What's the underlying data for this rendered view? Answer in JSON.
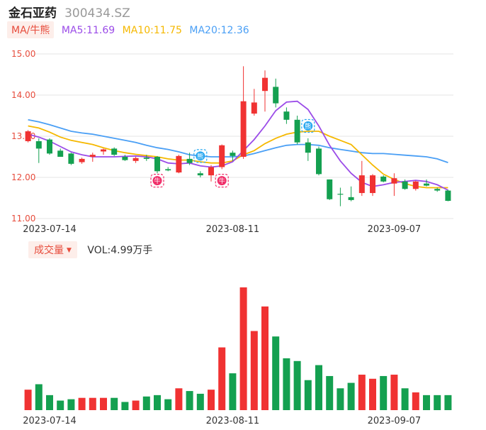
{
  "header": {
    "name": "金石亚药",
    "code": "300434.SZ"
  },
  "ma_legend": {
    "tag": "MA/牛熊",
    "items": [
      {
        "label": "MA5:11.69",
        "color": "#9b4ce8"
      },
      {
        "label": "MA10:11.75",
        "color": "#f5b800"
      },
      {
        "label": "MA20:12.36",
        "color": "#4a9ff5"
      }
    ]
  },
  "volume_legend": {
    "tag": "成交量",
    "value": "VOL:4.99万手"
  },
  "colors": {
    "up": "#f03232",
    "down": "#14a050",
    "marker_buy": "#f0306a",
    "marker_sell": "#2aa8f0"
  },
  "chart_data": [
    {
      "type": "candlestick",
      "y_ticks": [
        "15.00",
        "14.00",
        "13.00",
        "12.00",
        "11.00"
      ],
      "ylim": [
        11.0,
        15.0
      ],
      "x_ticks": [
        {
          "label": "2023-07-14",
          "index": 2
        },
        {
          "label": "2023-08-11",
          "index": 19
        },
        {
          "label": "2023-09-07",
          "index": 34
        }
      ],
      "candles": [
        {
          "o": 12.88,
          "h": 13.15,
          "l": 12.85,
          "c": 13.12
        },
        {
          "o": 12.88,
          "h": 12.95,
          "l": 12.35,
          "c": 12.7
        },
        {
          "o": 12.92,
          "h": 12.95,
          "l": 12.55,
          "c": 12.58
        },
        {
          "o": 12.65,
          "h": 12.7,
          "l": 12.5,
          "c": 12.5
        },
        {
          "o": 12.58,
          "h": 12.6,
          "l": 12.3,
          "c": 12.33
        },
        {
          "o": 12.37,
          "h": 12.48,
          "l": 12.33,
          "c": 12.45
        },
        {
          "o": 12.5,
          "h": 12.6,
          "l": 12.38,
          "c": 12.55
        },
        {
          "o": 12.63,
          "h": 12.7,
          "l": 12.55,
          "c": 12.68
        },
        {
          "o": 12.7,
          "h": 12.73,
          "l": 12.52,
          "c": 12.55
        },
        {
          "o": 12.5,
          "h": 12.55,
          "l": 12.4,
          "c": 12.42
        },
        {
          "o": 12.4,
          "h": 12.5,
          "l": 12.35,
          "c": 12.47
        },
        {
          "o": 12.48,
          "h": 12.55,
          "l": 12.4,
          "c": 12.45
        },
        {
          "o": 12.5,
          "h": 12.52,
          "l": 12.1,
          "c": 12.15
        },
        {
          "o": 12.2,
          "h": 12.25,
          "l": 12.15,
          "c": 12.17
        },
        {
          "o": 12.12,
          "h": 12.55,
          "l": 12.1,
          "c": 12.52
        },
        {
          "o": 12.45,
          "h": 12.6,
          "l": 12.3,
          "c": 12.35
        },
        {
          "o": 12.1,
          "h": 12.15,
          "l": 12.0,
          "c": 12.05
        },
        {
          "o": 12.05,
          "h": 12.3,
          "l": 11.9,
          "c": 12.25
        },
        {
          "o": 12.25,
          "h": 12.8,
          "l": 12.2,
          "c": 12.78
        },
        {
          "o": 12.6,
          "h": 12.65,
          "l": 12.4,
          "c": 12.52
        },
        {
          "o": 12.5,
          "h": 14.7,
          "l": 12.45,
          "c": 13.85
        },
        {
          "o": 13.55,
          "h": 14.15,
          "l": 13.5,
          "c": 13.82
        },
        {
          "o": 14.1,
          "h": 14.6,
          "l": 13.6,
          "c": 14.42
        },
        {
          "o": 14.2,
          "h": 14.4,
          "l": 13.7,
          "c": 13.8
        },
        {
          "o": 13.6,
          "h": 13.7,
          "l": 13.3,
          "c": 13.4
        },
        {
          "o": 13.4,
          "h": 13.5,
          "l": 12.8,
          "c": 12.85
        },
        {
          "o": 12.85,
          "h": 12.95,
          "l": 12.4,
          "c": 12.6
        },
        {
          "o": 12.7,
          "h": 12.75,
          "l": 12.05,
          "c": 12.08
        },
        {
          "o": 11.95,
          "h": 11.95,
          "l": 11.45,
          "c": 11.47
        },
        {
          "o": 11.6,
          "h": 11.75,
          "l": 11.3,
          "c": 11.58
        },
        {
          "o": 11.52,
          "h": 11.78,
          "l": 11.42,
          "c": 11.45
        },
        {
          "o": 11.62,
          "h": 12.4,
          "l": 11.55,
          "c": 12.05
        },
        {
          "o": 11.62,
          "h": 12.08,
          "l": 11.55,
          "c": 12.05
        },
        {
          "o": 12.02,
          "h": 12.05,
          "l": 11.88,
          "c": 11.9
        },
        {
          "o": 11.85,
          "h": 12.1,
          "l": 11.55,
          "c": 11.98
        },
        {
          "o": 11.9,
          "h": 11.95,
          "l": 11.7,
          "c": 11.72
        },
        {
          "o": 11.72,
          "h": 11.92,
          "l": 11.68,
          "c": 11.9
        },
        {
          "o": 11.85,
          "h": 11.95,
          "l": 11.78,
          "c": 11.8
        },
        {
          "o": 11.72,
          "h": 11.75,
          "l": 11.65,
          "c": 11.68
        },
        {
          "o": 11.68,
          "h": 11.7,
          "l": 11.42,
          "c": 11.43
        }
      ],
      "ma5": [
        13.05,
        12.98,
        12.88,
        12.75,
        12.62,
        12.55,
        12.5,
        12.5,
        12.5,
        12.51,
        12.52,
        12.5,
        12.45,
        12.35,
        12.33,
        12.35,
        12.28,
        12.25,
        12.28,
        12.38,
        12.65,
        12.92,
        13.25,
        13.62,
        13.83,
        13.85,
        13.65,
        13.25,
        12.78,
        12.4,
        12.1,
        11.88,
        11.78,
        11.82,
        11.88,
        11.9,
        11.93,
        11.9,
        11.82,
        11.69
      ],
      "ma10": [
        13.25,
        13.2,
        13.1,
        12.98,
        12.9,
        12.85,
        12.8,
        12.72,
        12.65,
        12.6,
        12.56,
        12.53,
        12.5,
        12.45,
        12.42,
        12.42,
        12.38,
        12.35,
        12.35,
        12.4,
        12.55,
        12.65,
        12.82,
        12.95,
        13.05,
        13.1,
        13.12,
        13.12,
        13.0,
        12.9,
        12.8,
        12.55,
        12.3,
        12.08,
        11.95,
        11.85,
        11.78,
        11.75,
        11.75,
        11.75
      ],
      "ma20": [
        13.4,
        13.35,
        13.28,
        13.2,
        13.12,
        13.08,
        13.05,
        13.0,
        12.95,
        12.9,
        12.85,
        12.78,
        12.72,
        12.68,
        12.62,
        12.55,
        12.52,
        12.5,
        12.5,
        12.5,
        12.52,
        12.58,
        12.65,
        12.72,
        12.78,
        12.8,
        12.8,
        12.78,
        12.72,
        12.68,
        12.64,
        12.6,
        12.58,
        12.58,
        12.56,
        12.54,
        12.52,
        12.5,
        12.45,
        12.36
      ],
      "markers": [
        {
          "index": 12,
          "kind": "buy",
          "value": 11.92,
          "label": "牛"
        },
        {
          "index": 16,
          "kind": "sell",
          "value": 12.52,
          "label": "熊"
        },
        {
          "index": 18,
          "kind": "buy",
          "value": 11.92,
          "label": "牛"
        },
        {
          "index": 26,
          "kind": "sell",
          "value": 13.25,
          "label": "熊"
        }
      ]
    },
    {
      "type": "bar",
      "volume": [
        15,
        19,
        11,
        7,
        8,
        9,
        9,
        9,
        9,
        6,
        7,
        10,
        11,
        8,
        16,
        14,
        12,
        15,
        46,
        27,
        90,
        58,
        76,
        54,
        38,
        36,
        22,
        33,
        25,
        16,
        20,
        26,
        23,
        25,
        26,
        16,
        13,
        11,
        11,
        11
      ]
    }
  ]
}
